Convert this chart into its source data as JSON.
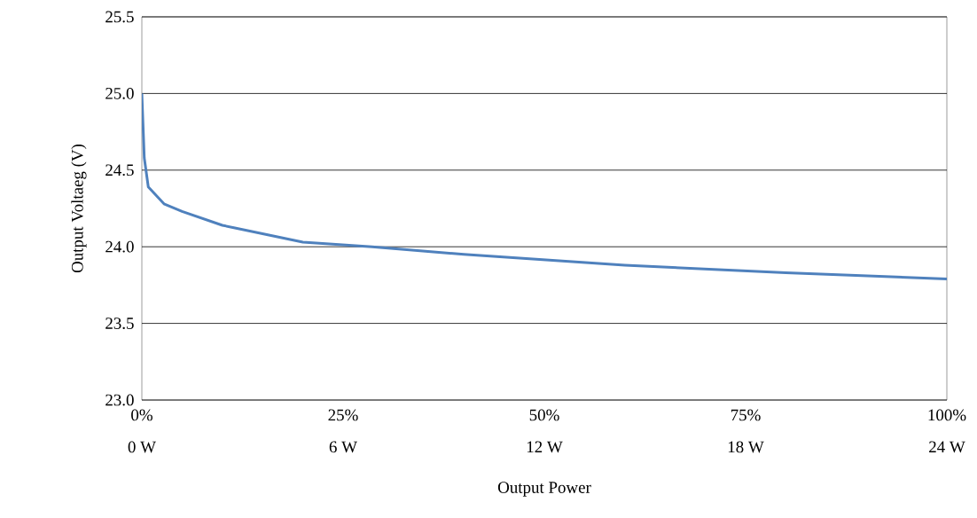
{
  "chart_data": {
    "type": "line",
    "xlabel": "Output Power",
    "ylabel": "Output Voltaeg (V)",
    "x": [
      0,
      0.3,
      0.8,
      2.75,
      5,
      10,
      20,
      28.6,
      40,
      60,
      80,
      100
    ],
    "values": [
      25.0,
      24.58,
      24.39,
      24.28,
      24.23,
      24.14,
      24.03,
      24.0,
      23.95,
      23.88,
      23.83,
      23.79
    ],
    "color": "#4f81bd",
    "line_style": "solid",
    "marker": "none",
    "grid": "y",
    "xlim": [
      0,
      100
    ],
    "xticks": [
      {
        "value": 0,
        "label": "0%"
      },
      {
        "value": 25,
        "label": "25%"
      },
      {
        "value": 50,
        "label": "50%"
      },
      {
        "value": 75,
        "label": "75%"
      },
      {
        "value": 100,
        "label": "100%"
      }
    ],
    "x2lim": [
      0,
      24
    ],
    "x2ticks": [
      {
        "value": 0,
        "label": "0 W"
      },
      {
        "value": 6,
        "label": "6 W"
      },
      {
        "value": 12,
        "label": "12 W"
      },
      {
        "value": 18,
        "label": "18 W"
      },
      {
        "value": 24,
        "label": "24 W"
      }
    ],
    "ylim": [
      23.0,
      25.5
    ],
    "yticks": [
      {
        "value": 23.0,
        "label": "23.0"
      },
      {
        "value": 23.5,
        "label": "23.5"
      },
      {
        "value": 24.0,
        "label": "24.0"
      },
      {
        "value": 24.5,
        "label": "24.5"
      },
      {
        "value": 25.0,
        "label": "25.0"
      },
      {
        "value": 25.5,
        "label": "25.5"
      }
    ]
  }
}
